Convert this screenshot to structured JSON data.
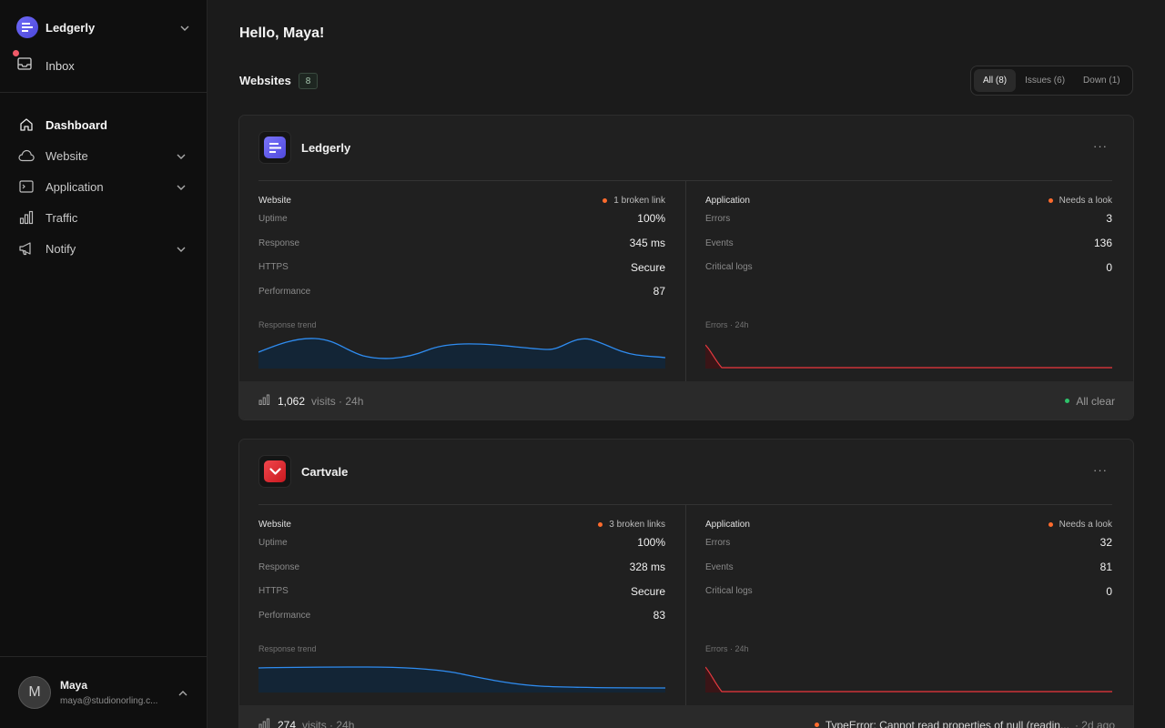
{
  "sidebar": {
    "workspace": {
      "name": "Ledgerly"
    },
    "inbox": {
      "label": "Inbox"
    },
    "nav": [
      {
        "label": "Dashboard",
        "icon": "home-icon"
      },
      {
        "label": "Website",
        "icon": "cloud-icon"
      },
      {
        "label": "Application",
        "icon": "terminal-icon"
      },
      {
        "label": "Traffic",
        "icon": "bar-chart-icon"
      },
      {
        "label": "Notify",
        "icon": "megaphone-icon"
      }
    ],
    "user": {
      "initial": "M",
      "name": "Maya",
      "email": "maya@studionorling.c..."
    }
  },
  "main": {
    "greeting": "Hello, Maya!",
    "websites_title": "Websites",
    "websites_count": "8",
    "filters": [
      "All (8)",
      "Issues (6)",
      "Down (1)"
    ],
    "sites": [
      {
        "name": "Ledgerly",
        "more": "···",
        "website": {
          "title": "Website",
          "status": "1 broken link",
          "metrics": [
            {
              "label": "Uptime",
              "value": "100%"
            },
            {
              "label": "Response",
              "value": "345 ms"
            },
            {
              "label": "HTTPS",
              "value": "Secure"
            },
            {
              "label": "Performance",
              "value": "87"
            }
          ],
          "trend_label": "Response trend"
        },
        "application": {
          "title": "Application",
          "status": "Needs a look",
          "metrics": [
            {
              "label": "Errors",
              "value": "3"
            },
            {
              "label": "Events",
              "value": "136"
            },
            {
              "label": "Critical logs",
              "value": "0"
            }
          ],
          "trend_label": "Errors · 24h"
        },
        "footer": {
          "visits": "1,062",
          "visits_label": "visits · 24h",
          "status": "All clear"
        }
      },
      {
        "name": "Cartvale",
        "more": "···",
        "website": {
          "title": "Website",
          "status": "3 broken links",
          "metrics": [
            {
              "label": "Uptime",
              "value": "100%"
            },
            {
              "label": "Response",
              "value": "328 ms"
            },
            {
              "label": "HTTPS",
              "value": "Secure"
            },
            {
              "label": "Performance",
              "value": "83"
            }
          ],
          "trend_label": "Response trend"
        },
        "application": {
          "title": "Application",
          "status": "Needs a look",
          "metrics": [
            {
              "label": "Errors",
              "value": "32"
            },
            {
              "label": "Events",
              "value": "81"
            },
            {
              "label": "Critical logs",
              "value": "0"
            }
          ],
          "trend_label": "Errors · 24h"
        },
        "footer": {
          "visits": "274",
          "visits_label": "visits · 24h",
          "error": "TypeError: Cannot read properties of null (readin...",
          "time": "· 2d ago"
        }
      }
    ]
  },
  "colors": {
    "accent_blue": "#2f8cf0",
    "error_red": "#e5393f",
    "status_orange": "#ff6b2d",
    "status_green": "#2ec26a"
  }
}
